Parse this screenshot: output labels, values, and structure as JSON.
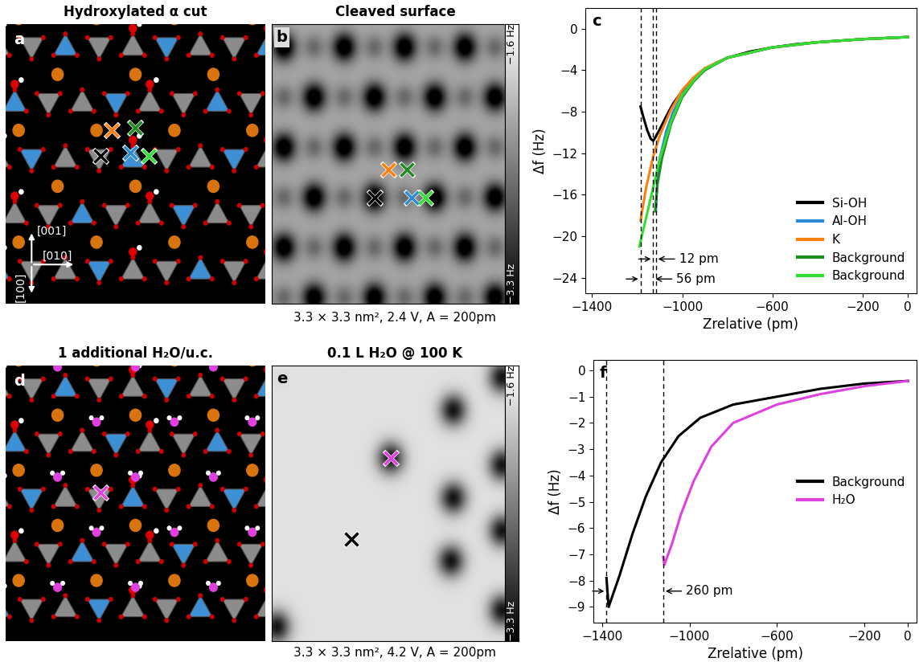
{
  "panels": [
    {
      "letter": "a",
      "type": "structure",
      "title": "Hydroxylated α cut",
      "directions": [
        "[001]",
        "[010]",
        "[100]"
      ],
      "marker_colors": [
        "#ff7f0e",
        "#1f8a1f",
        "#000000",
        "#2a8ad4",
        "#33dd33"
      ]
    },
    {
      "letter": "b",
      "type": "image",
      "title": "Cleaved surface",
      "caption": "3.3 × 3.3 nm², 2.4 V, A = 200pm",
      "colorbar": {
        "range": [
          -3.3,
          -1.6
        ],
        "ticks": [
          {
            "value": -1.6,
            "label": "−1.6 Hz"
          },
          {
            "value": -3.3,
            "label": "−3.3 Hz"
          }
        ]
      },
      "marker_colors": [
        "#ff7f0e",
        "#1f8a1f",
        "#000000",
        "#2a8ad4",
        "#33dd33"
      ]
    },
    {
      "letter": "d",
      "type": "structure",
      "title": "1 additional H₂O/u.c.",
      "marker_colors": [
        "#e040e0"
      ]
    },
    {
      "letter": "e",
      "type": "image",
      "title": "0.1 L H₂O @ 100 K",
      "caption": "3.3 × 3.3 nm², 4.2 V, A = 200pm",
      "colorbar": {
        "range": [
          -3.3,
          -1.6
        ],
        "ticks": [
          {
            "value": -1.6,
            "label": "−1.6 Hz"
          },
          {
            "value": -3.3,
            "label": "−3.3 Hz"
          }
        ]
      },
      "marker_colors": [
        "#e040e0",
        "#000000"
      ]
    }
  ],
  "chart_data": [
    {
      "type": "line",
      "letter": "c",
      "xlabel": "Zrelative (pm)",
      "ylabel": "Δf (Hz)",
      "xlim": [
        -1430,
        40
      ],
      "xticks": [
        {
          "value": -1400,
          "label": "−1400"
        },
        {
          "value": -1000,
          "label": "−1000"
        },
        {
          "value": -600,
          "label": "−600"
        },
        {
          "value": -200,
          "label": "−200"
        },
        0
      ],
      "ylim": [
        -25.5,
        2
      ],
      "yticks": [
        0,
        {
          "value": -4,
          "label": "−4"
        },
        {
          "value": -8,
          "label": "−8"
        },
        {
          "value": -12,
          "label": "−12"
        },
        {
          "value": -16,
          "label": "−16"
        },
        {
          "value": -20,
          "label": "−20"
        },
        {
          "value": -24,
          "label": "−24"
        }
      ],
      "legend": "lower right",
      "vlines": [
        -1185,
        -1129,
        -1117
      ],
      "annotations": [
        {
          "text": "12 pm",
          "between": [
            -1129,
            -1117
          ]
        },
        {
          "text": "56 pm",
          "between": [
            -1185,
            -1129
          ]
        }
      ],
      "series": [
        {
          "name": "Si-OH",
          "color": "#000000",
          "x": [
            0,
            -100,
            -200,
            -300,
            -400,
            -500,
            -600,
            -700,
            -800,
            -850,
            -900,
            -950,
            -1000,
            -1040,
            -1070,
            -1100,
            -1120,
            -1129,
            -1140,
            -1155,
            -1170,
            -1185
          ],
          "values": [
            -0.8,
            -0.9,
            -1.0,
            -1.15,
            -1.3,
            -1.5,
            -1.8,
            -2.2,
            -2.8,
            -3.3,
            -3.9,
            -4.8,
            -6.0,
            -7.2,
            -8.4,
            -9.7,
            -10.5,
            -10.8,
            -10.6,
            -9.8,
            -8.7,
            -7.5
          ]
        },
        {
          "name": "Al-OH",
          "color": "#2a8ad4",
          "x": [
            0,
            -200,
            -400,
            -600,
            -800,
            -900,
            -950,
            -1000,
            -1040,
            -1070,
            -1100,
            -1110,
            -1117
          ],
          "values": [
            -0.8,
            -1.0,
            -1.3,
            -1.8,
            -2.8,
            -3.9,
            -4.9,
            -6.3,
            -8.0,
            -9.8,
            -12.5,
            -14.5,
            -17.5
          ]
        },
        {
          "name": "K",
          "color": "#ff7f0e",
          "x": [
            0,
            -200,
            -400,
            -600,
            -800,
            -900,
            -950,
            -1000,
            -1050,
            -1100,
            -1130,
            -1160,
            -1185
          ],
          "values": [
            -0.8,
            -1.0,
            -1.3,
            -1.8,
            -2.8,
            -3.8,
            -4.7,
            -5.9,
            -7.8,
            -10.3,
            -12.4,
            -15.3,
            -18.5
          ]
        },
        {
          "name": "Background",
          "color": "#1f8a1f",
          "x": [
            0,
            -200,
            -400,
            -600,
            -800,
            -900,
            -950,
            -1000,
            -1050,
            -1090,
            -1110,
            -1120
          ],
          "values": [
            -0.8,
            -1.0,
            -1.3,
            -1.8,
            -2.8,
            -4.0,
            -5.1,
            -6.6,
            -9.2,
            -12.5,
            -15.0,
            -17.6
          ]
        },
        {
          "name": "Background",
          "color": "#33dd33",
          "x": [
            0,
            -200,
            -400,
            -600,
            -800,
            -900,
            -950,
            -1000,
            -1050,
            -1100,
            -1130,
            -1160,
            -1190
          ],
          "values": [
            -0.8,
            -1.0,
            -1.3,
            -1.8,
            -2.8,
            -3.9,
            -5.0,
            -6.4,
            -9.0,
            -12.6,
            -15.4,
            -18.2,
            -21.0
          ]
        }
      ]
    },
    {
      "type": "line",
      "letter": "f",
      "xlabel": "Zrelative (pm)",
      "ylabel": "Δf (Hz)",
      "xlim": [
        -1440,
        40
      ],
      "xticks": [
        {
          "value": -1400,
          "label": "−1400"
        },
        {
          "value": -1000,
          "label": "−1000"
        },
        {
          "value": -600,
          "label": "−600"
        },
        {
          "value": -200,
          "label": "−200"
        },
        0
      ],
      "ylim": [
        -9.6,
        0.4
      ],
      "yticks": [
        0,
        {
          "value": -1,
          "label": "−1"
        },
        {
          "value": -2,
          "label": "−2"
        },
        {
          "value": -3,
          "label": "−3"
        },
        {
          "value": -4,
          "label": "−4"
        },
        {
          "value": -5,
          "label": "−5"
        },
        {
          "value": -6,
          "label": "−6"
        },
        {
          "value": -7,
          "label": "−7"
        },
        {
          "value": -8,
          "label": "−8"
        },
        {
          "value": -9,
          "label": "−9"
        }
      ],
      "legend": "center right",
      "vlines": [
        -1380,
        -1120
      ],
      "annotations": [
        {
          "text": "260 pm",
          "between": [
            -1380,
            -1120
          ]
        }
      ],
      "series": [
        {
          "name": "Background",
          "color": "#000000",
          "x": [
            0,
            -200,
            -400,
            -600,
            -800,
            -950,
            -1050,
            -1130,
            -1200,
            -1260,
            -1320,
            -1370,
            -1380
          ],
          "values": [
            -0.4,
            -0.5,
            -0.7,
            -1.0,
            -1.3,
            -1.8,
            -2.5,
            -3.5,
            -4.8,
            -6.2,
            -7.8,
            -9.0,
            -7.9
          ]
        },
        {
          "name": "H₂O",
          "color": "#e040e0",
          "x": [
            0,
            -200,
            -400,
            -600,
            -800,
            -900,
            -980,
            -1040,
            -1080,
            -1115,
            -1120
          ],
          "values": [
            -0.4,
            -0.6,
            -0.9,
            -1.3,
            -2.0,
            -2.9,
            -4.2,
            -5.5,
            -6.6,
            -7.4,
            -7.1
          ]
        }
      ]
    }
  ]
}
